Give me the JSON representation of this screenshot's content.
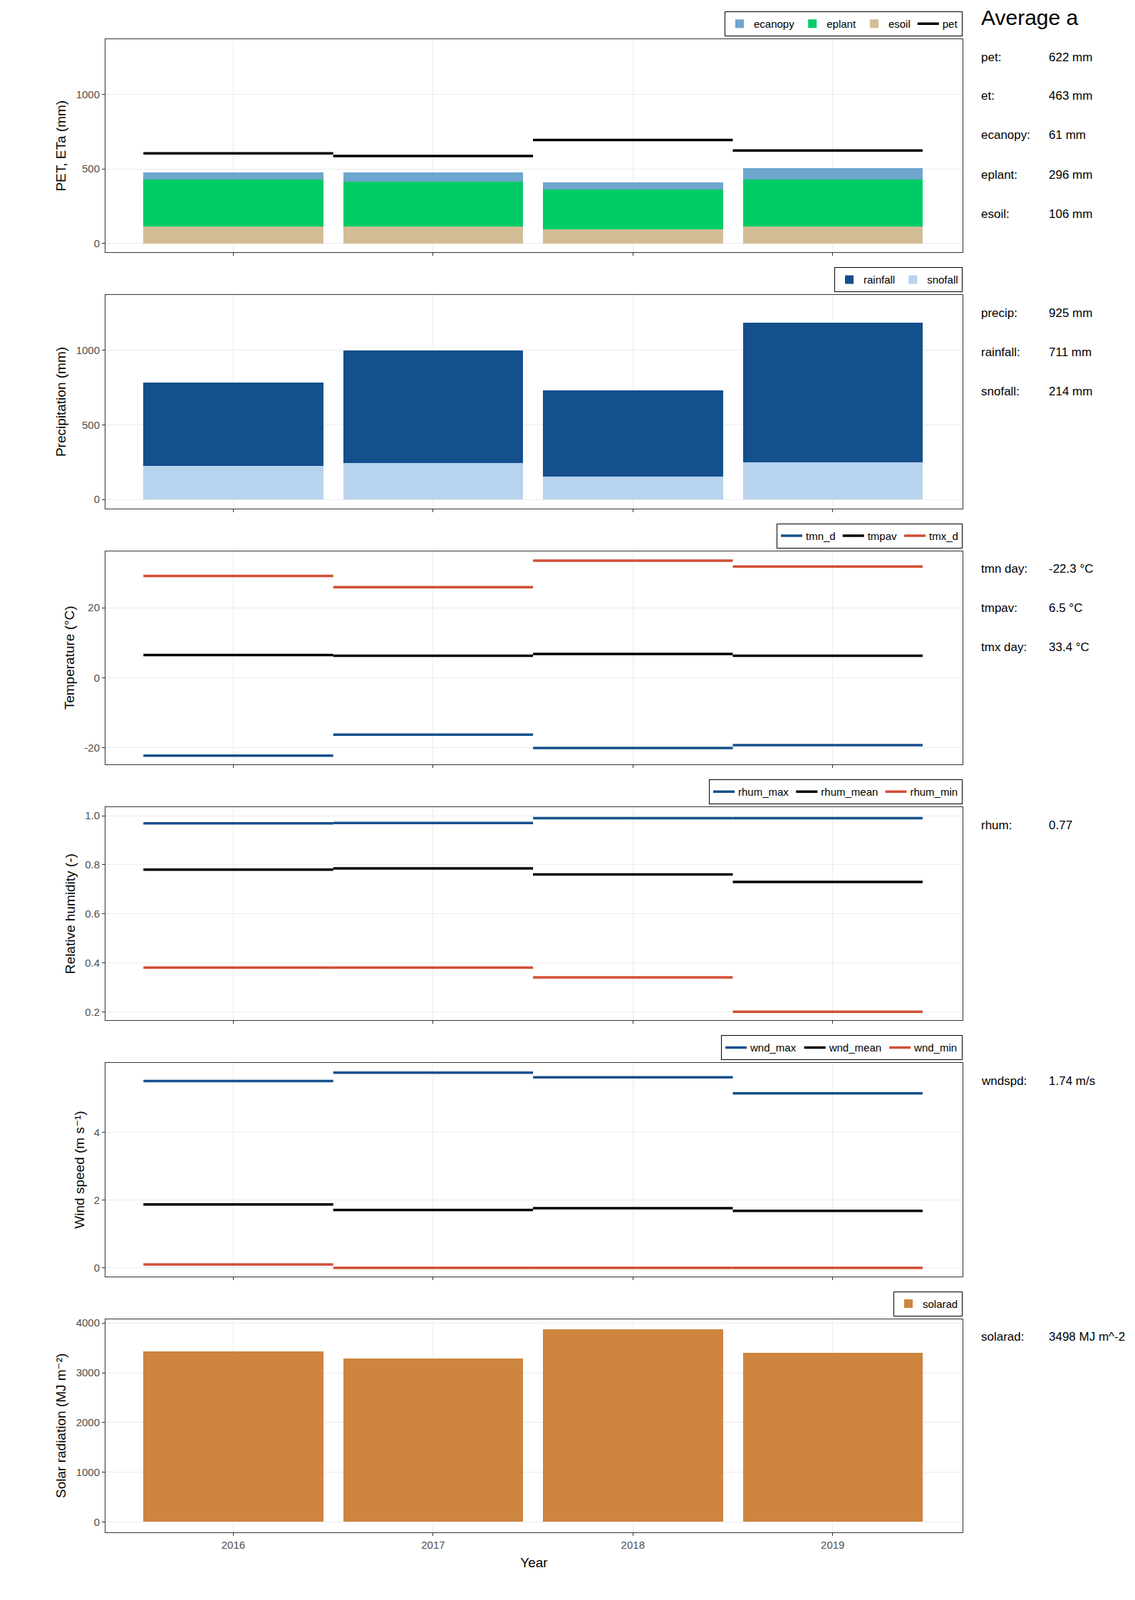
{
  "side_title": "Average a",
  "chart_data": [
    {
      "type": "bar",
      "stacked": true,
      "grid": true,
      "tick_labels": "y",
      "y_label": "PET, ETa (mm)",
      "x": [
        2016,
        2017,
        2018,
        2019
      ],
      "xlim": [
        2015.36,
        2019.65
      ],
      "xticks": [
        2016,
        2017,
        2018,
        2019
      ],
      "ylim": [
        -60,
        1370
      ],
      "yticks": [
        0,
        500,
        1000
      ],
      "legend": "top right",
      "series": [
        {
          "name": "ecanopy",
          "type": "bar",
          "color": "#6ea6cd",
          "values": [
            51,
            64,
            45,
            76
          ]
        },
        {
          "name": "eplant",
          "type": "bar",
          "color": "#00cc66",
          "values": [
            312,
            299,
            267,
            312
          ]
        },
        {
          "name": "esoil",
          "type": "bar",
          "color": "#d2bd96",
          "values": [
            115,
            115,
            96,
            115
          ]
        },
        {
          "name": "pet",
          "type": "line",
          "color": "#000000",
          "values": [
            605,
            586,
            694,
            624
          ]
        }
      ],
      "annotations": [
        {
          "label": "pet:",
          "text": "622 mm"
        },
        {
          "label": "et:",
          "text": "463 mm"
        },
        {
          "label": "ecanopy:",
          "text": "61 mm"
        },
        {
          "label": "eplant:",
          "text": "296 mm"
        },
        {
          "label": "esoil:",
          "text": "106 mm"
        }
      ]
    },
    {
      "type": "bar",
      "stacked": true,
      "grid": true,
      "tick_labels": "y",
      "y_label": "Precipitation (mm)",
      "x": [
        2016,
        2017,
        2018,
        2019
      ],
      "xlim": [
        2015.36,
        2019.65
      ],
      "xticks": [
        2016,
        2017,
        2018,
        2019
      ],
      "ylim": [
        -60,
        1370
      ],
      "yticks": [
        0,
        500,
        1000
      ],
      "legend": "top right",
      "series": [
        {
          "name": "rainfall",
          "type": "bar",
          "color": "#13508c",
          "values": [
            560,
            758,
            579,
            937
          ]
        },
        {
          "name": "snofall",
          "type": "bar",
          "color": "#b8d3ee",
          "values": [
            223,
            242,
            153,
            248
          ]
        }
      ],
      "annotations": [
        {
          "label": "precip:",
          "text": "925 mm"
        },
        {
          "label": "rainfall:",
          "text": "711 mm"
        },
        {
          "label": "snofall:",
          "text": "214 mm"
        }
      ]
    },
    {
      "type": "line",
      "grid": true,
      "tick_labels": "y",
      "y_label": "Temperature (°C)",
      "x": [
        2016,
        2017,
        2018,
        2019
      ],
      "xlim": [
        2015.36,
        2019.65
      ],
      "xticks": [
        2016,
        2017,
        2018,
        2019
      ],
      "ylim": [
        -24.8,
        36.2
      ],
      "yticks": [
        -20,
        0,
        20
      ],
      "legend": "top right",
      "series": [
        {
          "name": "tmn_d",
          "color": "#16508c",
          "values": [
            -22.3,
            -16.3,
            -20.1,
            -19.3
          ]
        },
        {
          "name": "tmpav",
          "color": "#000000",
          "values": [
            6.5,
            6.3,
            6.8,
            6.3
          ]
        },
        {
          "name": "tmx_d",
          "color": "#d24d35",
          "values": [
            29.1,
            25.9,
            33.5,
            31.8
          ]
        }
      ],
      "annotations": [
        {
          "label": "tmn day:",
          "text": "-22.3 °C"
        },
        {
          "label": "tmpav:",
          "text": "6.5 °C"
        },
        {
          "label": "tmx day:",
          "text": "33.4 °C"
        }
      ]
    },
    {
      "type": "line",
      "grid": true,
      "tick_labels": "y",
      "y_label": "Relative humidity (-)",
      "x": [
        2016,
        2017,
        2018,
        2019
      ],
      "xlim": [
        2015.36,
        2019.65
      ],
      "xticks": [
        2016,
        2017,
        2018,
        2019
      ],
      "ylim": [
        0.165,
        1.035
      ],
      "yticks": [
        0.2,
        0.4,
        0.6,
        0.8,
        {
          "value": 1,
          "label": "1.0"
        }
      ],
      "legend": "top right",
      "series": [
        {
          "name": "rhum_max",
          "color": "#16508c",
          "values": [
            0.969,
            0.97,
            0.99,
            0.99
          ]
        },
        {
          "name": "rhum_mean",
          "color": "#000000",
          "values": [
            0.78,
            0.785,
            0.76,
            0.73
          ]
        },
        {
          "name": "rhum_min",
          "color": "#d24d35",
          "values": [
            0.38,
            0.38,
            0.34,
            0.2
          ]
        }
      ],
      "annotations": [
        {
          "label": "rhum:",
          "text": "0.77"
        }
      ]
    },
    {
      "type": "line",
      "grid": true,
      "tick_labels": "y",
      "y_label": "Wind speed (m s⁻¹)",
      "x": [
        2016,
        2017,
        2018,
        2019
      ],
      "xlim": [
        2015.36,
        2019.65
      ],
      "xticks": [
        2016,
        2017,
        2018,
        2019
      ],
      "ylim": [
        -0.25,
        6.04
      ],
      "yticks": [
        0,
        2,
        4
      ],
      "legend": "top right",
      "series": [
        {
          "name": "wnd_max",
          "color": "#16508c",
          "values": [
            5.51,
            5.76,
            5.62,
            5.15
          ]
        },
        {
          "name": "wnd_mean",
          "color": "#000000",
          "values": [
            1.87,
            1.71,
            1.76,
            1.68
          ]
        },
        {
          "name": "wnd_min",
          "color": "#d24d35",
          "values": [
            0.1,
            0,
            0,
            0
          ]
        }
      ],
      "annotations": [
        {
          "label": "wndspd:",
          "text": "1.74 m/s"
        }
      ]
    },
    {
      "type": "bar",
      "grid": true,
      "y_label": "Solar radiation (MJ m⁻²)",
      "x_label": "Year",
      "x": [
        2016,
        2017,
        2018,
        2019
      ],
      "xlim": [
        2015.36,
        2019.65
      ],
      "xticks": [
        2016,
        2017,
        2018,
        2019
      ],
      "ylim": [
        -210,
        4080
      ],
      "yticks": [
        0,
        1000,
        2000,
        3000,
        4000
      ],
      "legend": "top right",
      "series": [
        {
          "name": "solarad",
          "type": "bar",
          "color": "#cd853f",
          "values": [
            3434,
            3283,
            3868,
            3396
          ]
        }
      ],
      "annotations": [
        {
          "label": "solarad:",
          "text": "3498 MJ m^-2"
        }
      ]
    }
  ]
}
